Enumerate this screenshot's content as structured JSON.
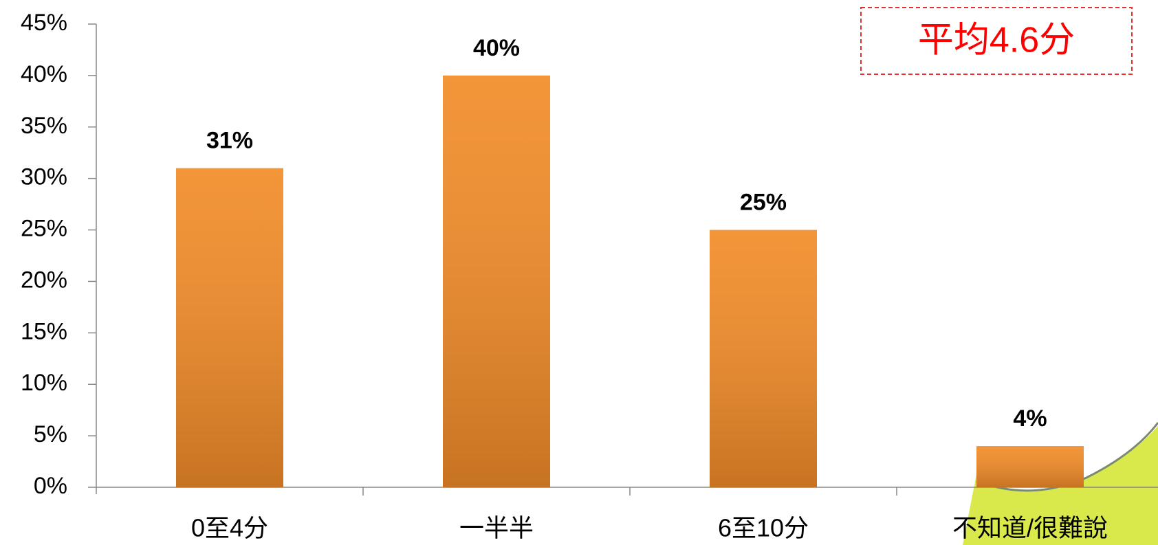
{
  "chart_data": {
    "type": "bar",
    "annotation": "平均4.6分",
    "categories": [
      "0至4分",
      "一半半",
      "6至10分",
      "不知道/很難說"
    ],
    "values": [
      31,
      40,
      25,
      4
    ],
    "value_labels": [
      "31%",
      "40%",
      "25%",
      "4%"
    ],
    "color": "#f28c28",
    "annotation_color": "#ff0000",
    "ylim": [
      0,
      45
    ],
    "yticks": [
      {
        "value": 0,
        "label": "0%"
      },
      {
        "value": 5,
        "label": "5%"
      },
      {
        "value": 10,
        "label": "10%"
      },
      {
        "value": 15,
        "label": "15%"
      },
      {
        "value": 20,
        "label": "20%"
      },
      {
        "value": 25,
        "label": "25%"
      },
      {
        "value": 30,
        "label": "30%"
      },
      {
        "value": 35,
        "label": "35%"
      },
      {
        "value": 40,
        "label": "40%"
      },
      {
        "value": 45,
        "label": "45%"
      }
    ],
    "grid": false
  }
}
